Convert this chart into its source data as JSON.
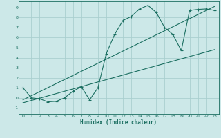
{
  "title": "",
  "xlabel": "Humidex (Indice chaleur)",
  "bg_color": "#cce8e8",
  "grid_color": "#aacfcf",
  "line_color": "#1a6e60",
  "xlim": [
    -0.5,
    23.5
  ],
  "ylim": [
    -1.6,
    9.6
  ],
  "xticks": [
    0,
    1,
    2,
    3,
    4,
    5,
    6,
    7,
    8,
    9,
    10,
    11,
    12,
    13,
    14,
    15,
    16,
    17,
    18,
    19,
    20,
    21,
    22,
    23
  ],
  "yticks": [
    -1,
    0,
    1,
    2,
    3,
    4,
    5,
    6,
    7,
    8,
    9
  ],
  "line1_x": [
    0,
    1,
    2,
    3,
    4,
    5,
    6,
    7,
    8,
    9,
    10,
    11,
    12,
    13,
    14,
    15,
    16,
    17,
    18,
    19,
    20,
    21,
    22,
    23
  ],
  "line1_y": [
    1.0,
    0.0,
    -0.1,
    -0.4,
    -0.35,
    0.0,
    0.65,
    1.1,
    -0.2,
    1.0,
    4.4,
    6.3,
    7.7,
    8.1,
    8.85,
    9.2,
    8.5,
    7.0,
    6.3,
    4.7,
    8.7,
    8.8,
    8.85,
    8.7
  ],
  "line2_x": [
    0,
    23
  ],
  "line2_y": [
    -0.2,
    9.1
  ],
  "line3_x": [
    0,
    23
  ],
  "line3_y": [
    -0.5,
    4.8
  ]
}
